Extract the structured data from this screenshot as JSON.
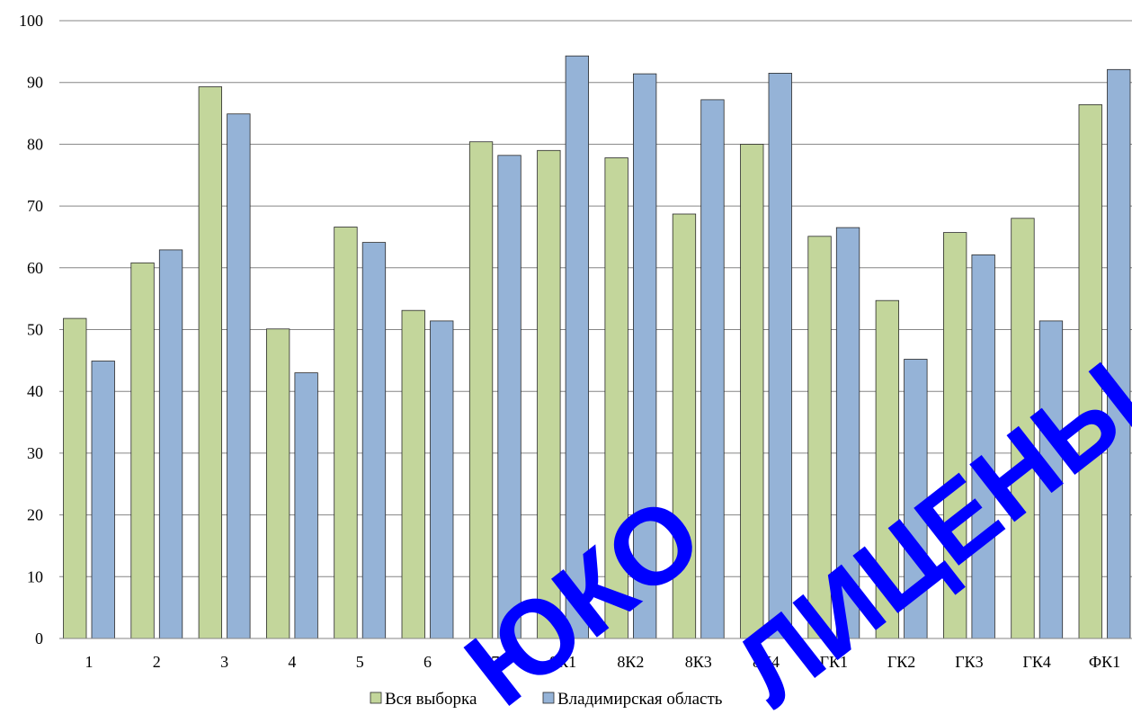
{
  "chart_data": {
    "type": "bar",
    "categories": [
      "1",
      "2",
      "3",
      "4",
      "5",
      "6",
      "7",
      "8К1",
      "8К2",
      "8К3",
      "8К4",
      "ГК1",
      "ГК2",
      "ГК3",
      "ГК4",
      "ФК1"
    ],
    "series": [
      {
        "name": "Вся выборка",
        "color": "#c3d69b",
        "values": [
          51.8,
          60.8,
          89.3,
          50.1,
          66.6,
          53.1,
          80.4,
          79.0,
          77.8,
          68.7,
          80.0,
          65.1,
          54.7,
          65.7,
          68.0,
          86.4
        ]
      },
      {
        "name": "Владимирская область",
        "color": "#95b3d7",
        "values": [
          44.9,
          62.9,
          84.9,
          43.0,
          64.1,
          51.4,
          78.2,
          94.3,
          91.4,
          87.2,
          91.5,
          66.5,
          45.2,
          62.1,
          51.4,
          92.1
        ]
      }
    ],
    "ylim": [
      0,
      100
    ],
    "yticks": [
      0,
      10,
      20,
      30,
      40,
      50,
      60,
      70,
      80,
      90,
      100
    ],
    "grid": true,
    "legend": "bottom"
  },
  "watermark": {
    "word1": "ЮКО",
    "word2": "ЛИЦЕНЫ",
    "color": "#0000ff"
  }
}
